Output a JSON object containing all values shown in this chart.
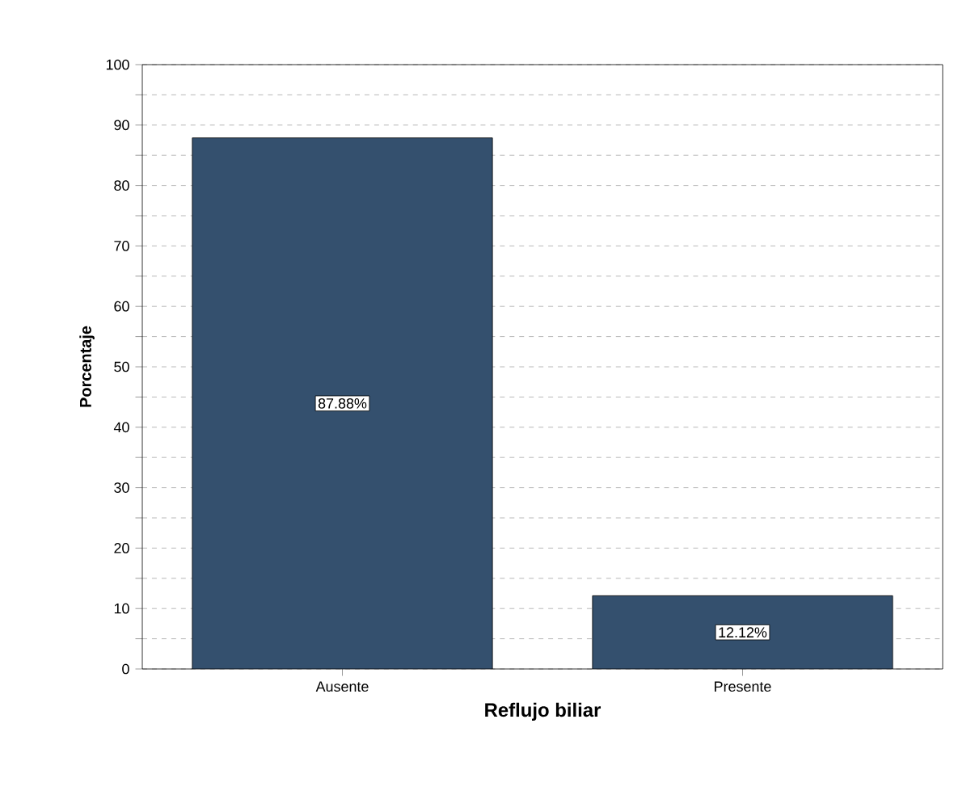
{
  "chart_data": {
    "type": "bar",
    "xlabel": "Reflujo biliar",
    "ylabel": "Porcentaje",
    "categories": [
      "Ausente",
      "Presente"
    ],
    "values": [
      87.88,
      12.12
    ],
    "value_labels": [
      "87.88%",
      "12.12%"
    ],
    "color": "#34506e",
    "ylim": [
      0,
      100
    ],
    "yticks": [
      0,
      {
        "value": 5,
        "label": null
      },
      10,
      {
        "value": 15,
        "label": null
      },
      20,
      {
        "value": 25,
        "label": null
      },
      30,
      {
        "value": 35,
        "label": null
      },
      40,
      {
        "value": 45,
        "label": null
      },
      50,
      {
        "value": 55,
        "label": null
      },
      60,
      {
        "value": 65,
        "label": null
      },
      70,
      {
        "value": 75,
        "label": null
      },
      80,
      {
        "value": 85,
        "label": null
      },
      90,
      {
        "value": 95,
        "label": null
      },
      100
    ],
    "grid": "y"
  }
}
